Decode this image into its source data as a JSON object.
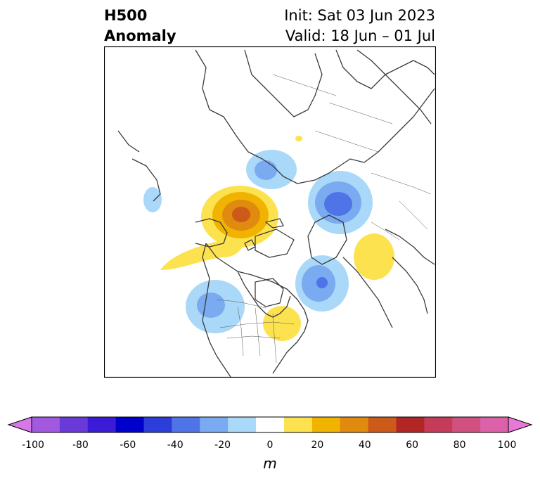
{
  "title": {
    "left_line1": "H500",
    "left_line2": "Anomaly",
    "init": "Init: Sat 03 Jun 2023",
    "valid": "Valid: 18 Jun – 01 Jul"
  },
  "colorbar": {
    "unit": "m",
    "ticks": [
      "-100",
      "-80",
      "-60",
      "-40",
      "-20",
      "0",
      "20",
      "40",
      "60",
      "80",
      "100"
    ],
    "colors": [
      "#d678e8",
      "#a259e0",
      "#6a3ad8",
      "#3b1bd6",
      "#0000cc",
      "#2c3ed9",
      "#4f74e8",
      "#7aaaf0",
      "#aad8f8",
      "#ffffff",
      "#fde24f",
      "#f0b300",
      "#e08a10",
      "#cc5a18",
      "#b32626",
      "#c43c5a",
      "#d05080",
      "#db62a8",
      "#e878d8"
    ],
    "min_arrow_color": "#d678e8",
    "max_arrow_color": "#e878d8"
  },
  "map": {
    "projection": "North polar stereographic",
    "features": [
      {
        "name": "blue anomaly near Bering Sea",
        "level": -20
      },
      {
        "name": "orange-red anomaly over Alaska / Yukon",
        "level": 50
      },
      {
        "name": "yellow ridge extending into Pacific",
        "level": 20
      },
      {
        "name": "blue anomaly over Scandinavia / Barents",
        "level": -30
      },
      {
        "name": "blue anomaly over western Siberia",
        "level": -50
      },
      {
        "name": "yellow anomaly over Kazakhstan",
        "level": 20
      },
      {
        "name": "blue anomaly over Newfoundland / Labrador Sea",
        "level": -50
      },
      {
        "name": "blue anomaly over Pacific Northwest",
        "level": -30
      },
      {
        "name": "yellow anomaly over Great Lakes",
        "level": 20
      }
    ]
  }
}
